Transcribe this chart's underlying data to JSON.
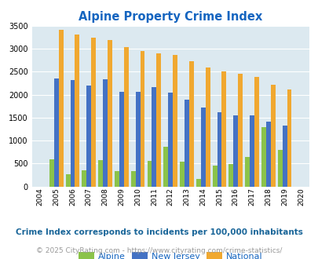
{
  "title": "Alpine Property Crime Index",
  "years": [
    2004,
    2005,
    2006,
    2007,
    2008,
    2009,
    2010,
    2011,
    2012,
    2013,
    2014,
    2015,
    2016,
    2017,
    2018,
    2019,
    2020
  ],
  "alpine": [
    0,
    600,
    270,
    350,
    570,
    340,
    340,
    560,
    860,
    540,
    160,
    450,
    490,
    640,
    1290,
    800,
    0
  ],
  "new_jersey": [
    0,
    2360,
    2320,
    2200,
    2330,
    2060,
    2060,
    2160,
    2050,
    1900,
    1720,
    1610,
    1550,
    1550,
    1410,
    1320,
    0
  ],
  "national": [
    0,
    3420,
    3320,
    3250,
    3190,
    3040,
    2950,
    2900,
    2860,
    2730,
    2590,
    2500,
    2460,
    2380,
    2210,
    2110,
    0
  ],
  "alpine_color": "#8bc34a",
  "nj_color": "#4472c4",
  "national_color": "#f0a830",
  "bg_color": "#dce9f0",
  "ylim": [
    0,
    3500
  ],
  "yticks": [
    0,
    500,
    1000,
    1500,
    2000,
    2500,
    3000,
    3500
  ],
  "legend_labels": [
    "Alpine",
    "New Jersey",
    "National"
  ],
  "footnote1": "Crime Index corresponds to incidents per 100,000 inhabitants",
  "footnote2": "© 2025 CityRating.com - https://www.cityrating.com/crime-statistics/",
  "title_color": "#1565c0",
  "footnote1_color": "#1a6699",
  "footnote2_color": "#999999",
  "legend_text_color": "#1565c0"
}
